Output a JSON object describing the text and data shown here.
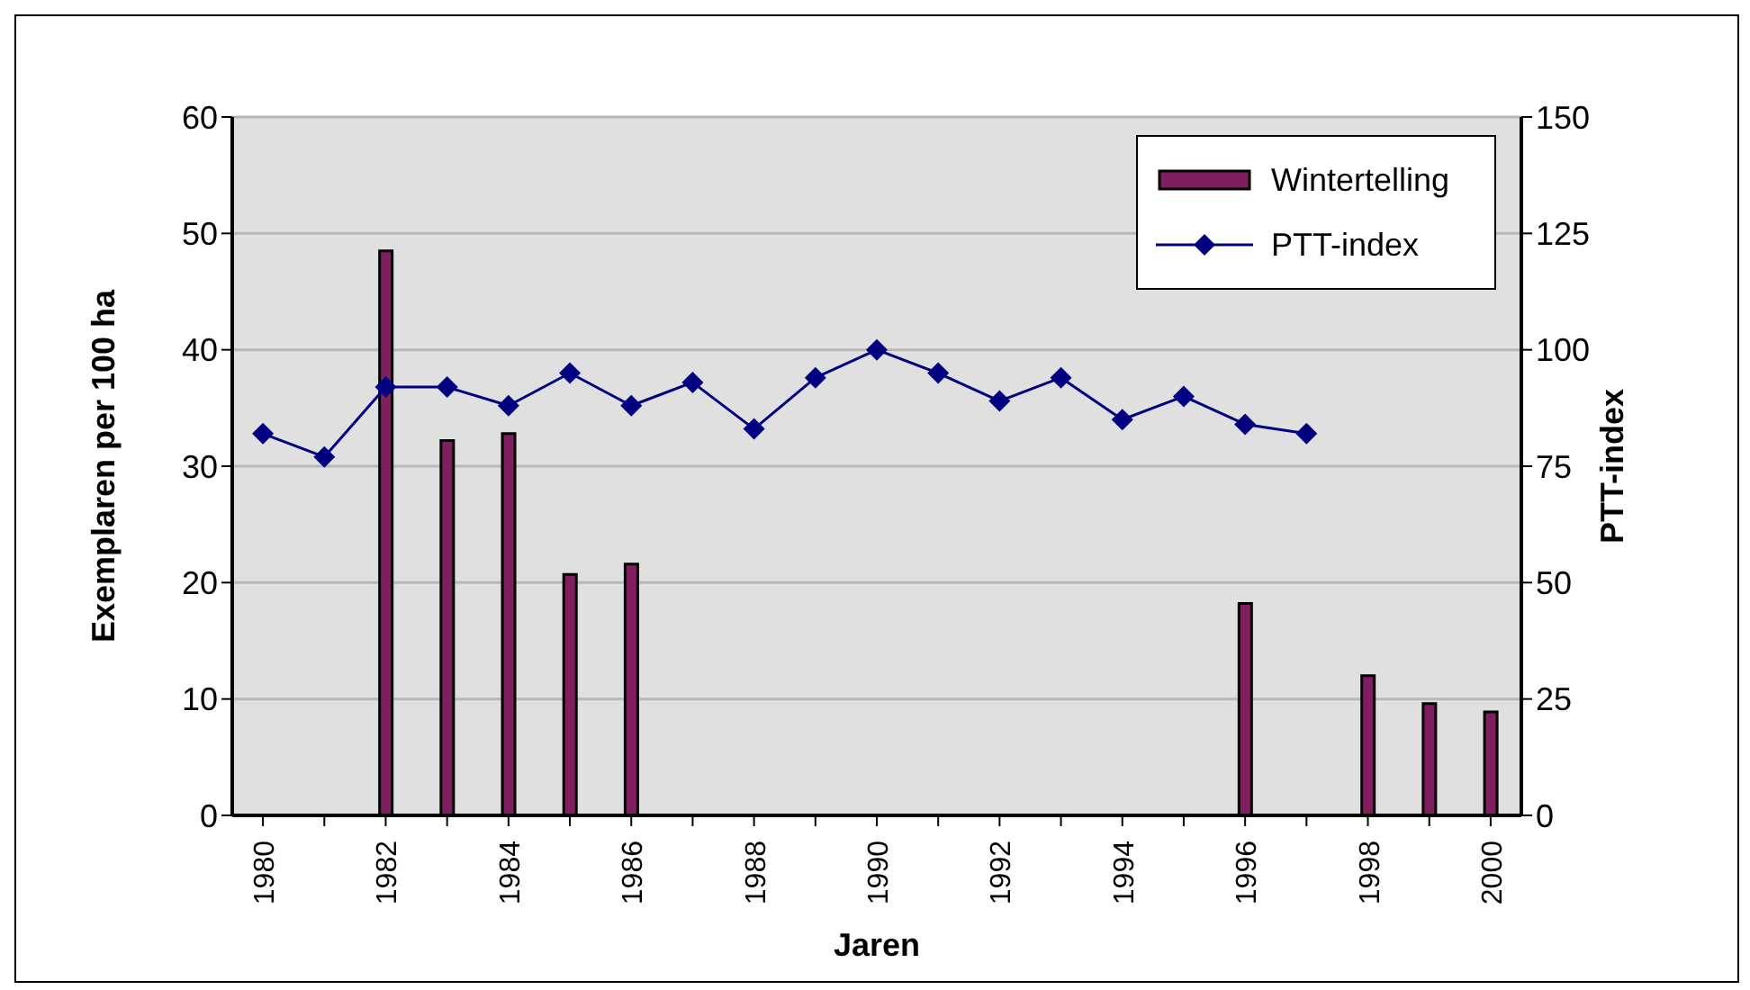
{
  "chart_data": {
    "type": "bar",
    "xlabel": "Jaren",
    "ylabel": "Exemplaren per 100 ha",
    "y2label": "PTT-index",
    "categories": [
      "1980",
      null,
      "1982",
      null,
      "1984",
      null,
      "1986",
      null,
      "1988",
      null,
      "1990",
      null,
      "1992",
      null,
      "1994",
      null,
      "1996",
      null,
      "1998",
      null,
      "2000"
    ],
    "series": [
      {
        "name": "Wintertelling",
        "color": "#801f5f",
        "values": [
          null,
          null,
          48.5,
          32.2,
          32.8,
          20.7,
          21.6,
          null,
          null,
          null,
          null,
          null,
          null,
          null,
          null,
          null,
          18.2,
          null,
          12,
          9.6,
          8.9
        ]
      },
      {
        "name": "PTT-index",
        "type": "line",
        "axis": "y2",
        "color": "#000080",
        "marker": "diamond",
        "values": [
          82,
          77,
          92,
          92,
          88,
          95,
          88,
          93,
          83,
          94,
          100,
          95,
          89,
          94,
          85,
          90,
          84,
          82,
          null,
          null,
          null
        ]
      }
    ],
    "ylim": [
      0,
      60
    ],
    "yticks": [
      0,
      10,
      20,
      30,
      40,
      50,
      60
    ],
    "y2lim": [
      0,
      150
    ],
    "y2ticks": [
      0,
      25,
      50,
      75,
      100,
      125,
      150
    ],
    "grid": "y",
    "legend": "top right"
  }
}
